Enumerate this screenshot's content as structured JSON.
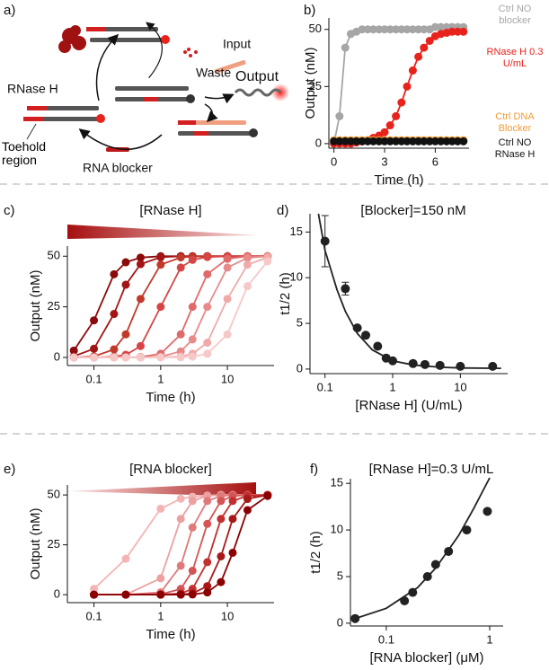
{
  "diagram": {
    "label": "a)",
    "texts": {
      "rnase": "RNase H",
      "waste": "Waste",
      "input": "Input",
      "output": "Output",
      "toehold": "Toehold region",
      "blocker": "RNA blocker"
    }
  },
  "chart_data": [
    {
      "type": "line",
      "panel": "b)",
      "x_label": "Time (h)",
      "y_label": "Output (nM)",
      "x": [
        0,
        0.33,
        0.67,
        1,
        1.33,
        1.67,
        2,
        2.33,
        2.67,
        3,
        3.33,
        3.67,
        4,
        4.33,
        4.67,
        5,
        5.33,
        5.67,
        6,
        6.33,
        6.67,
        7,
        7.33,
        7.67
      ],
      "xlim": [
        -0.3,
        8
      ],
      "xticks": [
        0,
        3,
        6
      ],
      "ylim": [
        -2,
        55
      ],
      "yticks": [
        0,
        25,
        50
      ],
      "series": [
        {
          "name": "Ctrl NO blocker",
          "color": "#a6a6a6",
          "values": [
            0,
            12,
            42,
            48,
            49,
            50,
            50,
            50,
            50,
            50,
            50,
            50,
            50,
            50,
            50,
            50,
            50,
            50,
            51,
            51,
            51,
            51,
            51,
            51
          ]
        },
        {
          "name": "RNase H 0.3 U/mL",
          "color": "#e8231c",
          "values": [
            0,
            0,
            0,
            0,
            0.5,
            1,
            1.5,
            2.5,
            3.5,
            5,
            8,
            12,
            18,
            25,
            32,
            38,
            42,
            45,
            47,
            48,
            48.5,
            49,
            49,
            49
          ]
        },
        {
          "name": "Ctrl DNA Blocker",
          "color": "#f39c34",
          "values": [
            1.5,
            1.5,
            1.5,
            1.5,
            1.5,
            1.5,
            1.5,
            1.5,
            1.5,
            1.5,
            1.5,
            1.5,
            1.5,
            1.5,
            1.5,
            1.5,
            1.5,
            1.5,
            1.5,
            1.5,
            1.5,
            1.5,
            1.5,
            1.5
          ]
        },
        {
          "name": "Ctrl NO RNase H",
          "color": "#111111",
          "values": [
            1,
            1,
            1,
            1,
            1,
            1,
            1,
            1,
            1,
            1,
            1,
            1,
            1,
            1,
            1,
            1,
            1,
            1,
            1,
            1,
            1,
            1,
            1,
            1
          ]
        }
      ]
    },
    {
      "type": "line",
      "panel": "c)",
      "title": "[RNase H]",
      "x_label": "Time (h)",
      "y_label": "Output (nM)",
      "xscale": "log",
      "x": [
        0.05,
        0.1,
        0.2,
        0.3,
        0.5,
        1,
        2,
        3,
        5,
        10,
        20,
        40
      ],
      "xlim": [
        0.04,
        50
      ],
      "xticks": [
        0.1,
        1,
        10
      ],
      "ylim": [
        -4,
        55
      ],
      "yticks": [
        0,
        25,
        50
      ],
      "series": [
        {
          "color": "#8b0a0a",
          "values": [
            3.4,
            18.3,
            41.1,
            47,
            49.3,
            50,
            50,
            50,
            50,
            50,
            50,
            50
          ]
        },
        {
          "color": "#a31515",
          "values": [
            0.6,
            4.3,
            21.5,
            35.9,
            46.1,
            49.5,
            50,
            50,
            50,
            50,
            50,
            50
          ]
        },
        {
          "color": "#c0392b",
          "values": [
            0,
            0.5,
            4,
            11.4,
            28.9,
            45.8,
            49.4,
            49.8,
            50,
            50,
            50,
            50
          ]
        },
        {
          "color": "#d64545",
          "values": [
            0,
            0,
            0.4,
            1.3,
            5.6,
            25,
            44.4,
            48.2,
            49.6,
            50,
            50,
            50
          ]
        },
        {
          "color": "#e06a6a",
          "values": [
            0,
            0,
            0,
            0,
            0.2,
            1.8,
            11.4,
            25,
            41.1,
            48.7,
            50,
            50
          ]
        },
        {
          "color": "#e88a8a",
          "values": [
            0,
            0,
            0,
            0,
            0,
            0.4,
            3,
            8.9,
            25,
            44.4,
            49.2,
            50
          ]
        },
        {
          "color": "#f0aaaa",
          "values": [
            0,
            0,
            0,
            0,
            0,
            0.1,
            0.5,
            1.8,
            7.3,
            28.9,
            45.8,
            49.4
          ]
        },
        {
          "color": "#f6c8c8",
          "values": [
            0,
            0,
            0,
            0,
            0,
            0,
            0.1,
            0.4,
            1.8,
            11.4,
            35.2,
            47.5
          ]
        }
      ]
    },
    {
      "type": "scatter",
      "panel": "d)",
      "title": "[Blocker]=150 nM",
      "x_label": "[RNase H] (U/mL)",
      "y_label": "t1/2 (h)",
      "xscale": "log",
      "color": "#222222",
      "x": [
        0.1,
        0.2,
        0.3,
        0.4,
        0.6,
        0.8,
        1,
        2,
        3,
        5,
        10,
        30
      ],
      "values": [
        14,
        8.8,
        4.5,
        3.7,
        2.5,
        1.2,
        0.9,
        0.6,
        0.5,
        0.4,
        0.3,
        0.3
      ],
      "errors": [
        2.8,
        0.7,
        0.2,
        0.2,
        0.2,
        0.2,
        0.2,
        0.1,
        0.1,
        0.1,
        0.1,
        0.1
      ],
      "fit": {
        "x": [
          0.08,
          0.1,
          0.15,
          0.2,
          0.3,
          0.5,
          1,
          2,
          5,
          10,
          40
        ],
        "values": [
          17,
          13,
          8.7,
          6.3,
          3.9,
          2.1,
          0.9,
          0.45,
          0.2,
          0.12,
          0.08
        ]
      },
      "xlim": [
        0.06,
        50
      ],
      "xticks": [
        0.1,
        1,
        10
      ],
      "ylim": [
        -0.5,
        17
      ],
      "yticks": [
        0,
        5,
        10,
        15
      ]
    },
    {
      "type": "line",
      "panel": "e)",
      "title": "[RNA blocker]",
      "x_label": "Time (h)",
      "y_label": "Output (nM)",
      "xscale": "log",
      "x": [
        0.1,
        0.3,
        1,
        2,
        3,
        5,
        8,
        12,
        20,
        40
      ],
      "xlim": [
        0.04,
        50
      ],
      "xticks": [
        0.1,
        1,
        10
      ],
      "ylim": [
        -4,
        55
      ],
      "yticks": [
        0,
        25,
        50
      ],
      "series": [
        {
          "color": "#f4b4b4",
          "values": [
            2.9,
            18,
            43.1,
            48.1,
            49.1,
            49.7,
            50,
            50,
            50,
            50
          ]
        },
        {
          "color": "#eda0a0",
          "values": [
            0,
            0,
            8.2,
            38,
            47,
            49.6,
            50,
            50,
            50,
            50
          ]
        },
        {
          "color": "#e07a7a",
          "values": [
            0,
            0,
            1.2,
            14.5,
            33.7,
            47,
            49.5,
            50,
            50,
            50
          ]
        },
        {
          "color": "#d45555",
          "values": [
            0,
            0,
            0.2,
            2.9,
            12,
            35.5,
            47,
            49.4,
            50,
            50
          ]
        },
        {
          "color": "#c23030",
          "values": [
            0,
            0,
            0,
            0.6,
            2.9,
            16.3,
            38,
            47,
            49.6,
            50
          ]
        },
        {
          "color": "#a81818",
          "values": [
            0,
            0,
            0,
            0.1,
            0.6,
            4.3,
            19.2,
            38,
            48,
            50
          ]
        },
        {
          "color": "#8b0000",
          "values": [
            0,
            0,
            0,
            0,
            0.1,
            1.1,
            6.3,
            21,
            42.4,
            49.5
          ]
        }
      ]
    },
    {
      "type": "scatter",
      "panel": "f)",
      "title": "[RNase H]=0.3 U/mL",
      "x_label": "[RNA blocker] (μM)",
      "y_label": "t1/2 (h)",
      "xscale": "log",
      "color": "#222222",
      "x": [
        0.05,
        0.15,
        0.18,
        0.25,
        0.3,
        0.4,
        0.6,
        0.95
      ],
      "values": [
        0.5,
        2.4,
        3.3,
        5,
        6.3,
        7.7,
        10,
        12
      ],
      "fit": {
        "x": [
          0.045,
          0.05,
          0.1,
          0.2,
          0.3,
          0.5,
          0.7,
          1.0
        ],
        "values": [
          0.4,
          0.5,
          1.6,
          3.8,
          5.9,
          9.4,
          12.3,
          15.6
        ]
      },
      "xlim": [
        0.045,
        1.35
      ],
      "xticks": [
        0.1,
        1
      ],
      "ylim": [
        -0.3,
        15.5
      ],
      "yticks": [
        0,
        5,
        10,
        15
      ]
    }
  ]
}
